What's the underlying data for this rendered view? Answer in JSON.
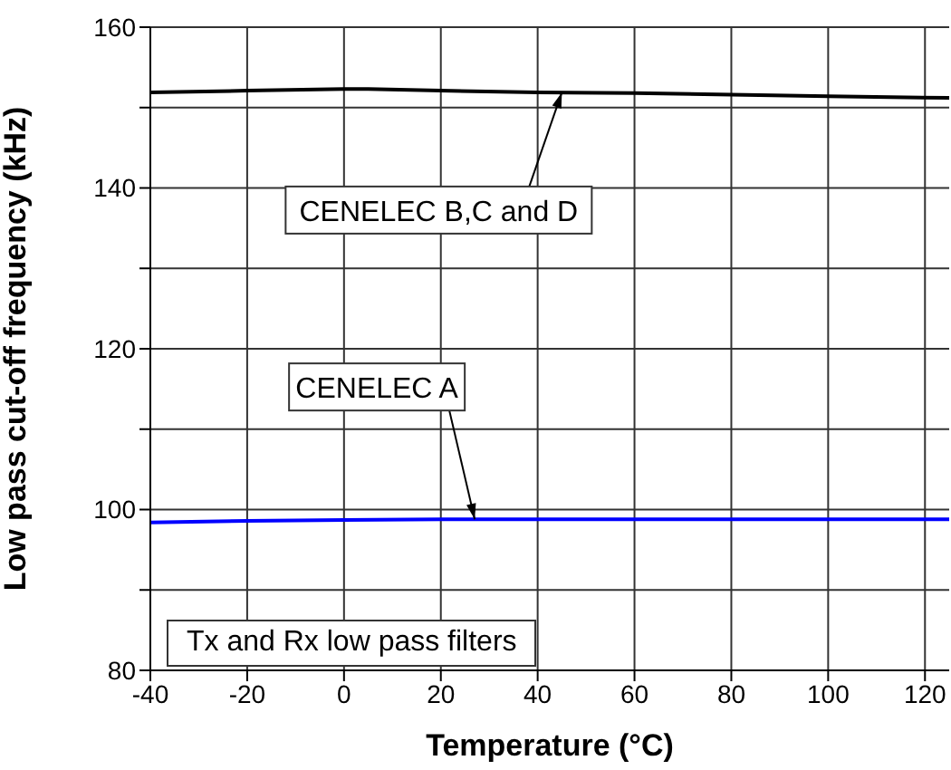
{
  "chart_data": {
    "type": "line",
    "xlabel": "Temperature (°C)",
    "ylabel": "Low pass cut-off frequency (kHz)",
    "xlim": [
      -40,
      125
    ],
    "xticks": [
      -40,
      -20,
      0,
      20,
      40,
      60,
      80,
      100,
      120
    ],
    "ylim": [
      80,
      160
    ],
    "yticks": [
      80,
      {
        "value": 90,
        "label": null
      },
      100,
      {
        "value": 110,
        "label": null
      },
      120,
      {
        "value": 130,
        "label": null
      },
      140,
      {
        "value": 150,
        "label": null
      },
      160
    ],
    "grid": true,
    "marker": "none",
    "line_style": "solid",
    "series": [
      {
        "color": "#000000",
        "x": [
          -40,
          -20,
          0,
          5,
          20,
          40,
          60,
          80,
          100,
          125
        ],
        "values": [
          151.9,
          152.1,
          152.3,
          152.3,
          152.1,
          151.9,
          151.8,
          151.6,
          151.4,
          151.2
        ]
      },
      {
        "color": "#0000ff",
        "x": [
          -40,
          -20,
          0,
          20,
          40,
          60,
          80,
          100,
          125
        ],
        "values": [
          98.4,
          98.6,
          98.7,
          98.8,
          98.8,
          98.8,
          98.8,
          98.8,
          98.8
        ]
      }
    ],
    "annotations": [
      {
        "text": "CENELEC B,C and D",
        "x": 45,
        "y": 151.9
      },
      {
        "text": "CENELEC A",
        "x": 27,
        "y": 98.8
      },
      "Tx and Rx low pass filters"
    ]
  }
}
